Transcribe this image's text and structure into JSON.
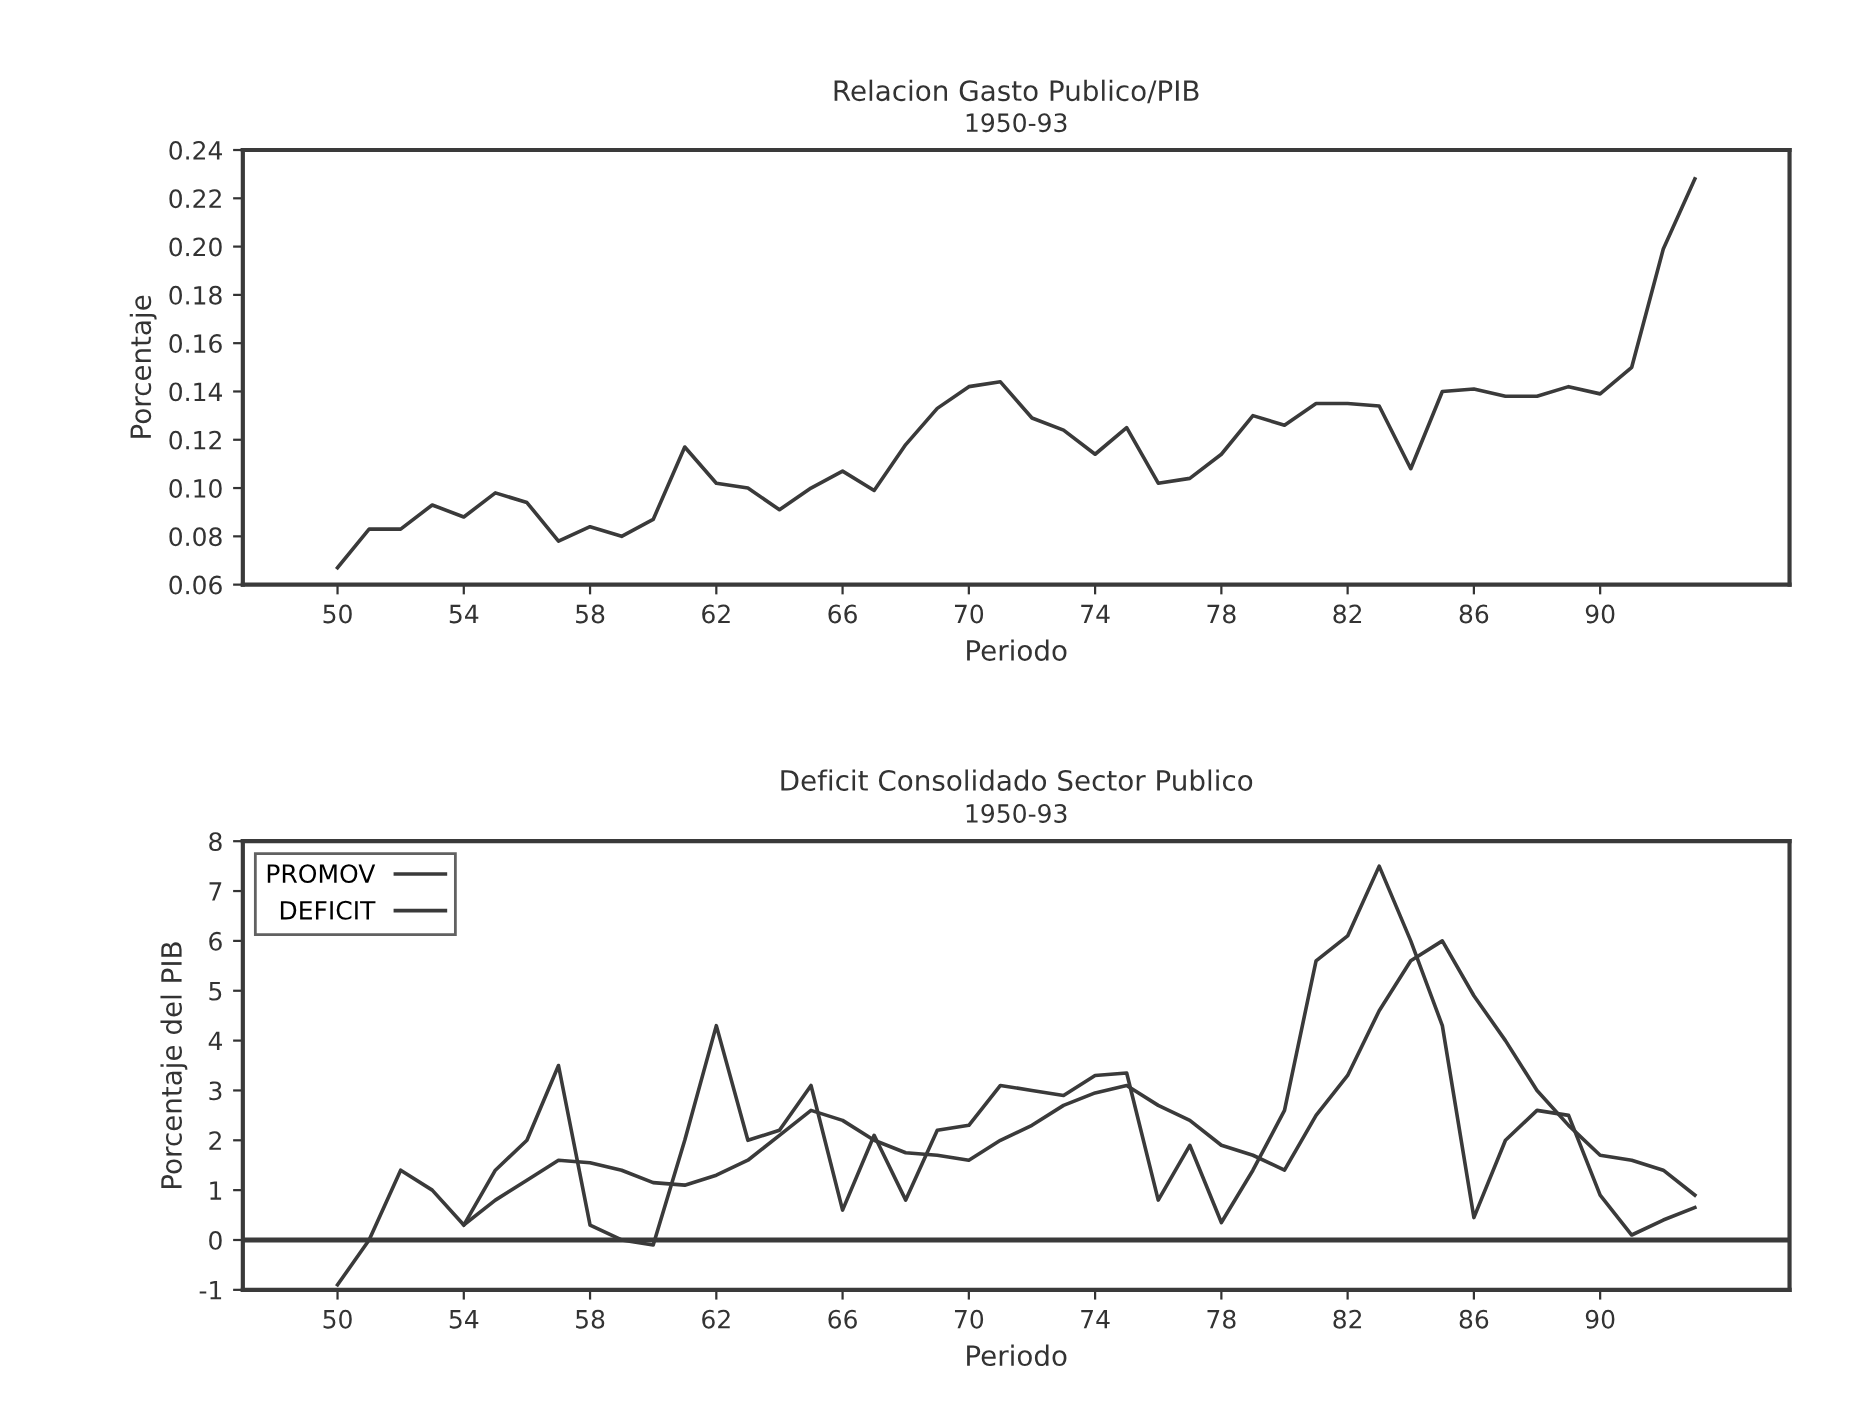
{
  "chart_data": [
    {
      "type": "line",
      "title": "Relacion Gasto Publico/PIB",
      "subtitle": "1950-93",
      "xlabel": "Periodo",
      "ylabel": "Porcentaje",
      "x": [
        50,
        51,
        52,
        53,
        54,
        55,
        56,
        57,
        58,
        59,
        60,
        61,
        62,
        63,
        64,
        65,
        66,
        67,
        68,
        69,
        70,
        71,
        72,
        73,
        74,
        75,
        76,
        77,
        78,
        79,
        80,
        81,
        82,
        83,
        84,
        85,
        86,
        87,
        88,
        89,
        90,
        91,
        92,
        93
      ],
      "series": [
        {
          "color": "#3a3a3a",
          "values": [
            0.067,
            0.083,
            0.083,
            0.093,
            0.088,
            0.098,
            0.094,
            0.078,
            0.084,
            0.08,
            0.087,
            0.117,
            0.102,
            0.1,
            0.091,
            0.1,
            0.107,
            0.099,
            0.118,
            0.133,
            0.142,
            0.144,
            0.129,
            0.124,
            0.114,
            0.125,
            0.102,
            0.104,
            0.114,
            0.13,
            0.126,
            0.135,
            0.135,
            0.134,
            0.108,
            0.14,
            0.141,
            0.138,
            0.138,
            0.142,
            0.139,
            0.15,
            0.199,
            0.228
          ]
        }
      ],
      "xlim": [
        47,
        96
      ],
      "xticks": [
        50,
        54,
        58,
        62,
        66,
        70,
        74,
        78,
        82,
        86,
        90
      ],
      "ylim": [
        0.06,
        0.24
      ],
      "yticks": [
        0.06,
        0.08,
        {
          "value": 0.1,
          "label": "0.10"
        },
        0.12,
        0.14,
        0.16,
        0.18,
        {
          "value": 0.2,
          "label": "0.20"
        },
        0.22,
        0.24
      ],
      "grid": false,
      "legend": false
    },
    {
      "type": "line",
      "title": "Deficit Consolidado Sector Publico",
      "subtitle": "1950-93",
      "xlabel": "Periodo",
      "ylabel": "Porcentaje del PIB",
      "x": [
        50,
        51,
        52,
        53,
        54,
        55,
        56,
        57,
        58,
        59,
        60,
        61,
        62,
        63,
        64,
        65,
        66,
        67,
        68,
        69,
        70,
        71,
        72,
        73,
        74,
        75,
        76,
        77,
        78,
        79,
        80,
        81,
        82,
        83,
        84,
        85,
        86,
        87,
        88,
        89,
        90,
        91,
        92,
        93
      ],
      "series": [
        {
          "name": "PROMOV",
          "color": "#3a3a3a",
          "values": [
            null,
            null,
            null,
            null,
            0.3,
            0.8,
            1.2,
            1.6,
            1.55,
            1.4,
            1.15,
            1.1,
            1.3,
            1.6,
            2.1,
            2.6,
            2.4,
            2.0,
            1.75,
            1.7,
            1.6,
            2.0,
            2.3,
            2.7,
            2.95,
            3.1,
            2.7,
            2.4,
            1.9,
            1.7,
            1.4,
            2.5,
            3.3,
            4.6,
            5.6,
            6.0,
            4.9,
            4.0,
            3.0,
            2.3,
            1.7,
            1.6,
            1.4,
            0.9
          ]
        },
        {
          "name": "DEFICIT",
          "color": "#3a3a3a",
          "values": [
            -0.9,
            0.0,
            1.4,
            1.0,
            0.3,
            1.4,
            2.0,
            3.5,
            0.3,
            0.0,
            -0.1,
            2.0,
            4.3,
            2.0,
            2.2,
            3.1,
            0.6,
            2.1,
            0.8,
            2.2,
            2.3,
            3.1,
            3.0,
            2.9,
            3.3,
            3.35,
            0.8,
            1.9,
            0.35,
            1.4,
            2.6,
            5.6,
            6.1,
            7.5,
            6.0,
            4.3,
            0.45,
            2.0,
            2.6,
            2.5,
            0.9,
            0.1,
            0.4,
            0.65
          ]
        }
      ],
      "xlim": [
        47,
        96
      ],
      "xticks": [
        50,
        54,
        58,
        62,
        66,
        70,
        74,
        78,
        82,
        86,
        90
      ],
      "ylim": [
        -1,
        8
      ],
      "yticks": [
        -1,
        0,
        1,
        2,
        3,
        4,
        5,
        6,
        7,
        8
      ],
      "ref_lines": [
        {
          "axis": "y",
          "value": 0,
          "color": "#3a3a3a"
        }
      ],
      "grid": false,
      "legend": "top left"
    }
  ]
}
